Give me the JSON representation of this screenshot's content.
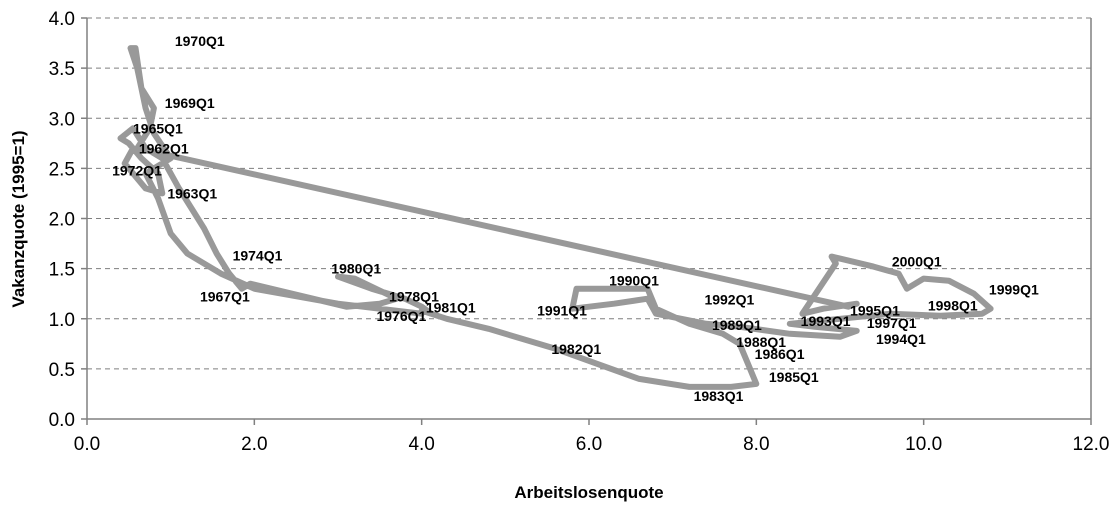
{
  "chart_data": {
    "type": "line",
    "title": "",
    "xlabel": "Arbeitslosenquote",
    "ylabel": "Vakanzquote (1995=1)",
    "xlim": [
      0,
      12
    ],
    "ylim": [
      0,
      4
    ],
    "x_ticks": [
      "0.0",
      "2.0",
      "4.0",
      "6.0",
      "8.0",
      "10.0",
      "12.0"
    ],
    "y_ticks": [
      "0.0",
      "0.5",
      "1.0",
      "1.5",
      "2.0",
      "2.5",
      "3.0",
      "3.5",
      "4.0"
    ],
    "grid": "horizontal dashed",
    "line_color": "#999999",
    "series": [
      {
        "points": [
          [
            0.55,
            2.7
          ],
          [
            0.45,
            2.55
          ],
          [
            0.7,
            2.3
          ],
          [
            0.9,
            2.25
          ],
          [
            0.85,
            2.45
          ],
          [
            0.65,
            2.6
          ],
          [
            0.5,
            2.75
          ],
          [
            0.4,
            2.8
          ],
          [
            0.55,
            2.9
          ],
          [
            0.7,
            2.7
          ],
          [
            0.9,
            2.6
          ],
          [
            1.1,
            2.3
          ],
          [
            1.25,
            2.1
          ],
          [
            1.4,
            1.9
          ],
          [
            1.55,
            1.65
          ],
          [
            1.7,
            1.45
          ],
          [
            1.85,
            1.3
          ],
          [
            1.95,
            1.35
          ],
          [
            2.3,
            1.28
          ],
          [
            2.8,
            1.18
          ],
          [
            3.1,
            1.12
          ],
          [
            3.5,
            1.15
          ],
          [
            3.7,
            1.2
          ],
          [
            3.2,
            1.4
          ],
          [
            3.0,
            1.42
          ],
          [
            3.4,
            1.3
          ],
          [
            3.8,
            1.2
          ],
          [
            4.0,
            1.12
          ],
          [
            4.1,
            1.06
          ],
          [
            4.0,
            1.08
          ],
          [
            4.3,
            1.0
          ],
          [
            4.8,
            0.9
          ],
          [
            5.6,
            0.7
          ],
          [
            6.1,
            0.55
          ],
          [
            6.6,
            0.4
          ],
          [
            7.2,
            0.32
          ],
          [
            7.7,
            0.32
          ],
          [
            8.0,
            0.35
          ],
          [
            7.9,
            0.55
          ],
          [
            7.8,
            0.75
          ],
          [
            7.6,
            0.85
          ],
          [
            7.2,
            0.95
          ],
          [
            6.8,
            1.1
          ],
          [
            6.7,
            1.3
          ],
          [
            6.3,
            1.3
          ],
          [
            5.85,
            1.3
          ],
          [
            5.8,
            1.1
          ],
          [
            6.3,
            1.15
          ],
          [
            6.7,
            1.2
          ],
          [
            6.8,
            1.05
          ],
          [
            7.4,
            0.95
          ],
          [
            7.8,
            0.92
          ],
          [
            8.4,
            0.85
          ],
          [
            9.0,
            0.82
          ],
          [
            9.2,
            0.88
          ],
          [
            8.7,
            0.92
          ],
          [
            8.4,
            0.95
          ],
          [
            9.0,
            1.0
          ],
          [
            9.6,
            1.05
          ],
          [
            10.2,
            1.03
          ],
          [
            10.7,
            1.05
          ],
          [
            10.8,
            1.1
          ],
          [
            10.6,
            1.25
          ],
          [
            10.3,
            1.38
          ],
          [
            10.0,
            1.4
          ],
          [
            9.8,
            1.3
          ],
          [
            9.7,
            1.45
          ],
          [
            9.4,
            1.52
          ],
          [
            9.0,
            1.6
          ],
          [
            8.9,
            1.62
          ],
          [
            8.95,
            1.55
          ],
          [
            8.55,
            1.05
          ],
          [
            8.8,
            1.1
          ],
          [
            9.2,
            1.15
          ],
          [
            9.1,
            1.12
          ],
          [
            0.6,
            2.7
          ],
          [
            0.75,
            2.9
          ],
          [
            0.8,
            3.1
          ],
          [
            0.65,
            3.3
          ],
          [
            0.58,
            3.7
          ],
          [
            0.52,
            3.7
          ],
          [
            0.6,
            3.5
          ],
          [
            0.7,
            3.1
          ],
          [
            0.8,
            2.85
          ],
          [
            1.0,
            2.6
          ],
          [
            0.7,
            2.45
          ],
          [
            0.85,
            2.2
          ],
          [
            1.0,
            1.85
          ],
          [
            1.2,
            1.65
          ],
          [
            1.6,
            1.45
          ],
          [
            2.0,
            1.3
          ],
          [
            3.0,
            1.15
          ],
          [
            4.0,
            1.05
          ]
        ]
      }
    ],
    "annotations": [
      {
        "text": "1970Q1",
        "x": 1.05,
        "y": 3.72
      },
      {
        "text": "1969Q1",
        "x": 0.93,
        "y": 3.1
      },
      {
        "text": "1965Q1",
        "x": 0.55,
        "y": 2.85
      },
      {
        "text": "1962Q1",
        "x": 0.62,
        "y": 2.65
      },
      {
        "text": "1972Q1",
        "x": 0.3,
        "y": 2.43
      },
      {
        "text": "1963Q1",
        "x": 0.96,
        "y": 2.2
      },
      {
        "text": "1974Q1",
        "x": 1.74,
        "y": 1.58
      },
      {
        "text": "1967Q1",
        "x": 1.35,
        "y": 1.17
      },
      {
        "text": "1980Q1",
        "x": 2.92,
        "y": 1.45
      },
      {
        "text": "1978Q1",
        "x": 3.61,
        "y": 1.17
      },
      {
        "text": "1981Q1",
        "x": 4.05,
        "y": 1.06
      },
      {
        "text": "1976Q1",
        "x": 3.46,
        "y": 0.98
      },
      {
        "text": "1982Q1",
        "x": 5.55,
        "y": 0.65
      },
      {
        "text": "1983Q1",
        "x": 7.25,
        "y": 0.18
      },
      {
        "text": "1985Q1",
        "x": 8.15,
        "y": 0.37
      },
      {
        "text": "1986Q1",
        "x": 7.98,
        "y": 0.6
      },
      {
        "text": "1988Q1",
        "x": 7.76,
        "y": 0.72
      },
      {
        "text": "1989Q1",
        "x": 7.47,
        "y": 0.89
      },
      {
        "text": "1990Q1",
        "x": 6.24,
        "y": 1.33
      },
      {
        "text": "1991Q1",
        "x": 5.38,
        "y": 1.03
      },
      {
        "text": "1992Q1",
        "x": 7.38,
        "y": 1.14
      },
      {
        "text": "1993Q1",
        "x": 8.53,
        "y": 0.93
      },
      {
        "text": "1994Q1",
        "x": 9.43,
        "y": 0.75
      },
      {
        "text": "1995Q1",
        "x": 9.12,
        "y": 1.03
      },
      {
        "text": "1997Q1",
        "x": 9.32,
        "y": 0.91
      },
      {
        "text": "1998Q1",
        "x": 10.05,
        "y": 1.08
      },
      {
        "text": "1999Q1",
        "x": 10.78,
        "y": 1.24
      },
      {
        "text": "2000Q1",
        "x": 9.62,
        "y": 1.52
      }
    ]
  }
}
